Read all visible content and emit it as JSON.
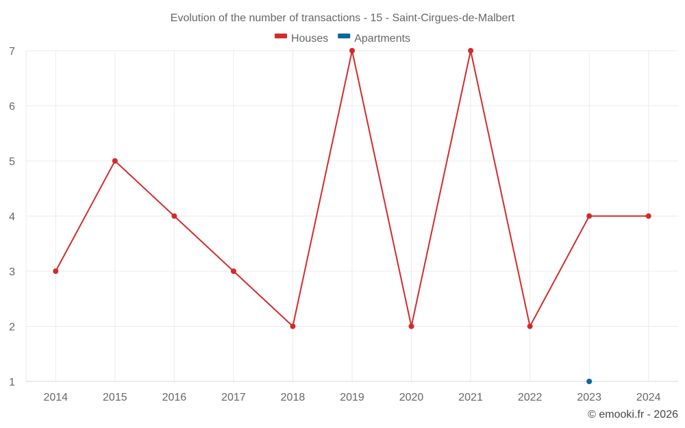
{
  "chart_data": {
    "type": "line",
    "title": "Evolution of the number of transactions - 15 - Saint-Cirgues-de-Malbert",
    "categories": [
      "2014",
      "2015",
      "2016",
      "2017",
      "2018",
      "2019",
      "2020",
      "2021",
      "2022",
      "2023",
      "2024"
    ],
    "series": [
      {
        "name": "Houses",
        "color": "#d42a2a",
        "values": [
          3,
          5,
          4,
          3,
          2,
          7,
          2,
          7,
          2,
          4,
          4
        ]
      },
      {
        "name": "Apartments",
        "color": "#08689e",
        "values": [
          null,
          null,
          null,
          null,
          null,
          null,
          null,
          null,
          null,
          1,
          null
        ]
      }
    ],
    "ylim": [
      1,
      7
    ],
    "yticks": [
      1,
      2,
      3,
      4,
      5,
      6,
      7
    ],
    "grid": true,
    "legend": "top-center"
  },
  "credit": "© emooki.fr - 2026"
}
